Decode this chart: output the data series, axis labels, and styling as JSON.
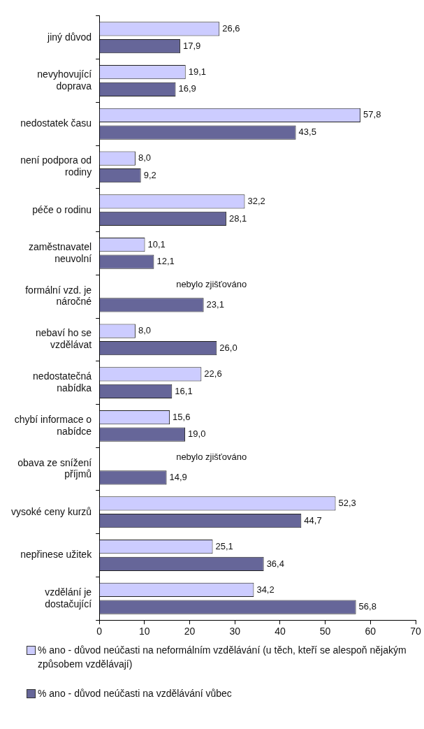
{
  "chart_data": {
    "type": "bar",
    "orientation": "horizontal",
    "categories": [
      "jiný důvod",
      "nevyhovující doprava",
      "nedostatek času",
      "není podpora od rodiny",
      "péče o rodinu",
      "zaměstnavatel neuvolní",
      "formální vzd. je náročné",
      "nebaví ho se vzdělávat",
      "nedostatečná nabídka",
      "chybí informace o nabídce",
      "obava ze snížení příjmů",
      "vysoké ceny kurzů",
      "nepřinese užitek",
      "vzdělání je dostačující"
    ],
    "series": [
      {
        "name": "% ano - důvod neúčasti na neformálním vzdělávání (u těch, kteří se alespoň nějakým způsobem vzdělávají)",
        "color": "#ccccff",
        "values": [
          26.6,
          19.1,
          57.8,
          8.0,
          32.2,
          10.1,
          null,
          8.0,
          22.6,
          15.6,
          null,
          52.3,
          25.1,
          34.2
        ],
        "value_labels": [
          "26,6",
          "19,1",
          "57,8",
          "8,0",
          "32,2",
          "10,1",
          null,
          "8,0",
          "22,6",
          "15,6",
          null,
          "52,3",
          "25,1",
          "34,2"
        ]
      },
      {
        "name": "% ano - důvod neúčasti na vzdělávání vůbec",
        "color": "#666699",
        "values": [
          17.9,
          16.9,
          43.5,
          9.2,
          28.1,
          12.1,
          23.1,
          26.0,
          16.1,
          19.0,
          14.9,
          44.7,
          36.4,
          56.8
        ],
        "value_labels": [
          "17,9",
          "16,9",
          "43,5",
          "9,2",
          "28,1",
          "12,1",
          "23,1",
          "26,0",
          "16,1",
          "19,0",
          "14,9",
          "44,7",
          "36,4",
          "56,8"
        ]
      }
    ],
    "annotations": [
      "nebylo zjišťováno",
      "nebylo zjišťováno"
    ],
    "xlim": [
      0,
      70
    ],
    "xticks": [
      0,
      10,
      20,
      30,
      40,
      50,
      60,
      70
    ],
    "grid": false,
    "legend": "bottom"
  }
}
